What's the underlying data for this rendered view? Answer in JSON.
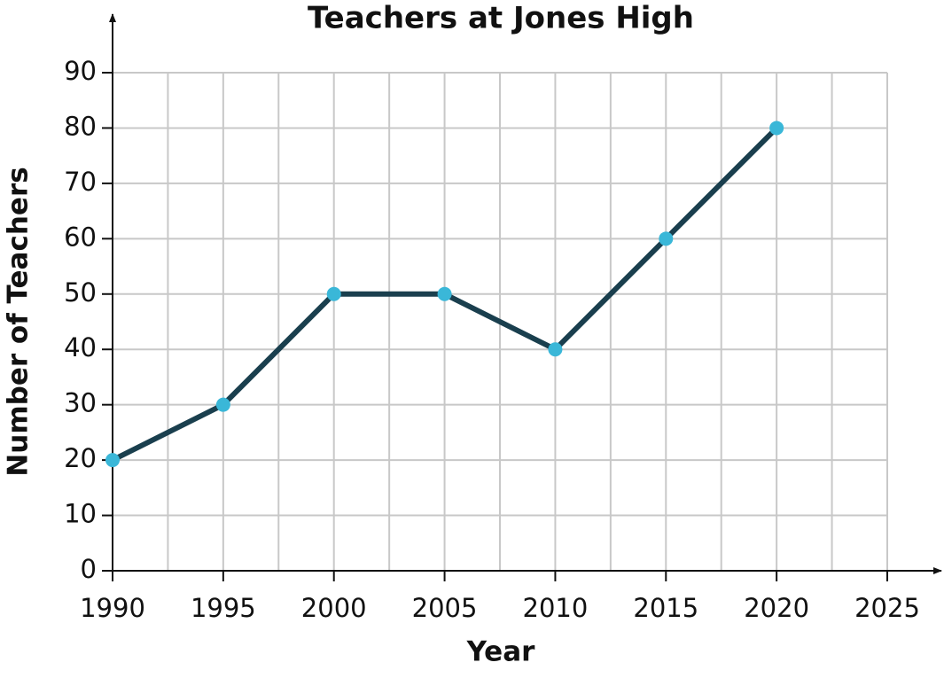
{
  "chart_data": {
    "type": "line",
    "title": "Teachers at Jones High",
    "x_label": "Year",
    "y_label": "Number of Teachers",
    "x": [
      1990,
      1995,
      2000,
      2005,
      2010,
      2015,
      2020
    ],
    "series": [
      {
        "name": "Teachers",
        "color": "#1a3f4e",
        "marker_color": "#3ab7d8",
        "values": [
          20,
          30,
          50,
          50,
          40,
          60,
          80
        ]
      }
    ],
    "xlim": [
      1990,
      2025
    ],
    "xticks": [
      1990,
      1995,
      2000,
      2005,
      2010,
      2015,
      2020,
      2025
    ],
    "x_minor_grid": [
      1992.5,
      1997.5,
      2002.5,
      2007.5,
      2012.5,
      2017.5,
      2022.5
    ],
    "ylim": [
      0,
      90
    ],
    "yticks": [
      0,
      10,
      20,
      30,
      40,
      50,
      60,
      70,
      80,
      90
    ],
    "grid": true
  }
}
